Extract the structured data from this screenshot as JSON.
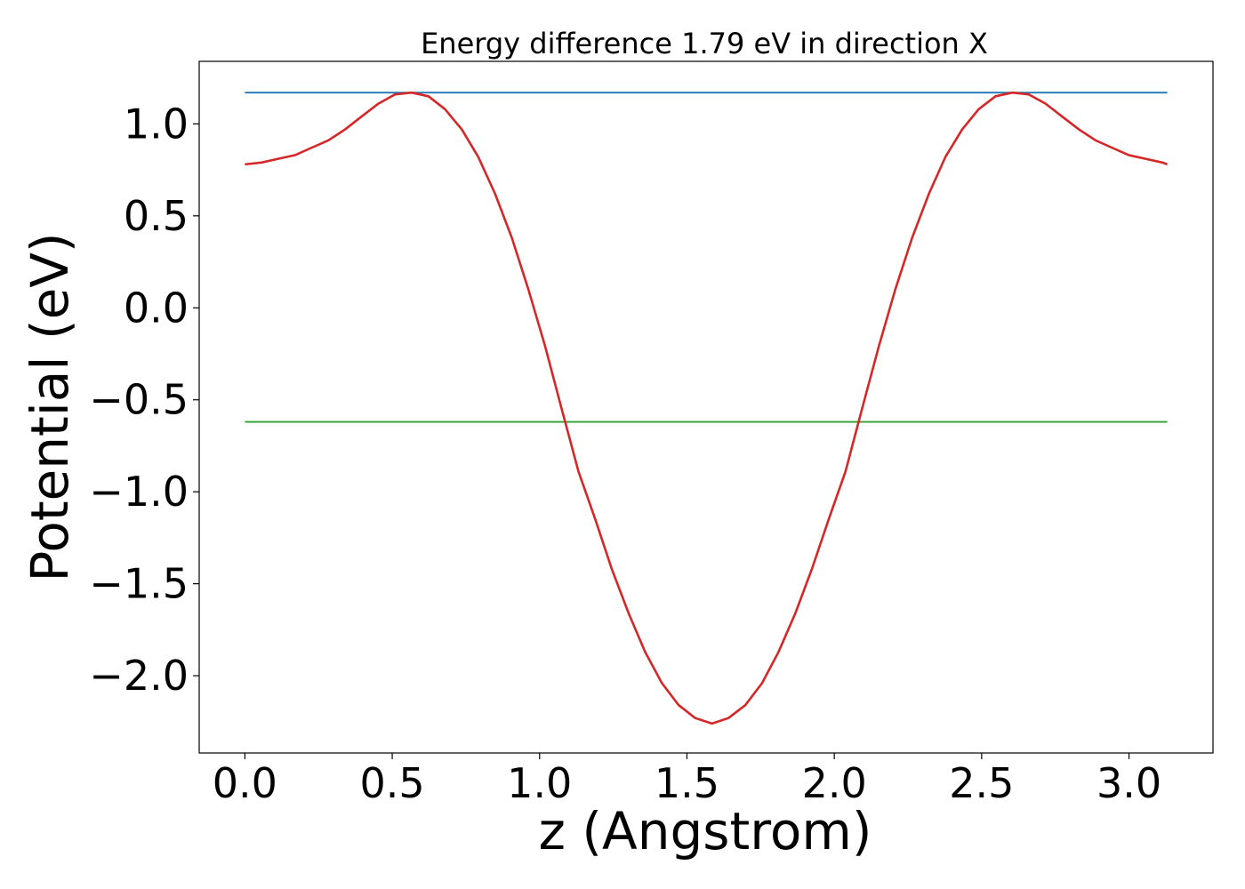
{
  "chart_data": {
    "type": "line",
    "title": "Energy difference 1.79 eV in direction X",
    "xlabel": "z (Angstrom)",
    "ylabel": "Potential (eV)",
    "xlim": [
      -0.155,
      3.285
    ],
    "ylim": [
      -2.42,
      1.34
    ],
    "grid": false,
    "xticks": [
      {
        "value": 0.0,
        "label": "0.0"
      },
      {
        "value": 0.5,
        "label": "0.5"
      },
      {
        "value": 1.0,
        "label": "1.0"
      },
      {
        "value": 1.5,
        "label": "1.5"
      },
      {
        "value": 2.0,
        "label": "2.0"
      },
      {
        "value": 2.5,
        "label": "2.5"
      },
      {
        "value": 3.0,
        "label": "3.0"
      }
    ],
    "yticks": [
      {
        "value": 1.0,
        "label": "1.0"
      },
      {
        "value": 0.5,
        "label": "0.5"
      },
      {
        "value": 0.0,
        "label": "0.0"
      },
      {
        "value": -0.5,
        "label": "−0.5"
      },
      {
        "value": -1.0,
        "label": "−1.0"
      },
      {
        "value": -1.5,
        "label": "−1.5"
      },
      {
        "value": -2.0,
        "label": "−2.0"
      }
    ],
    "series": [
      {
        "color": "#1f77b4",
        "x": [
          0.0,
          3.13
        ],
        "y": [
          1.17,
          1.17
        ]
      },
      {
        "color": "#2ca02c",
        "x": [
          0.0,
          3.13
        ],
        "y": [
          -0.62,
          -0.62
        ]
      },
      {
        "color": "#d62728",
        "x": [
          0.0,
          0.057,
          0.113,
          0.17,
          0.226,
          0.283,
          0.34,
          0.396,
          0.453,
          0.509,
          0.566,
          0.623,
          0.679,
          0.736,
          0.792,
          0.849,
          0.906,
          0.962,
          1.019,
          1.075,
          1.132,
          1.189,
          1.245,
          1.302,
          1.358,
          1.415,
          1.472,
          1.528,
          1.585,
          1.641,
          1.698,
          1.755,
          1.811,
          1.868,
          1.924,
          1.981,
          2.038,
          2.094,
          2.151,
          2.207,
          2.264,
          2.321,
          2.377,
          2.434,
          2.49,
          2.547,
          2.604,
          2.66,
          2.717,
          2.773,
          2.83,
          2.887,
          2.943,
          3.0,
          3.056,
          3.113,
          3.13
        ],
        "y": [
          0.78,
          0.79,
          0.81,
          0.83,
          0.87,
          0.91,
          0.97,
          1.04,
          1.11,
          1.16,
          1.17,
          1.15,
          1.08,
          0.97,
          0.82,
          0.62,
          0.38,
          0.1,
          -0.21,
          -0.55,
          -0.89,
          -1.15,
          -1.42,
          -1.66,
          -1.87,
          -2.04,
          -2.16,
          -2.23,
          -2.26,
          -2.23,
          -2.16,
          -2.04,
          -1.87,
          -1.66,
          -1.42,
          -1.15,
          -0.89,
          -0.55,
          -0.21,
          0.1,
          0.38,
          0.62,
          0.82,
          0.97,
          1.08,
          1.15,
          1.17,
          1.16,
          1.11,
          1.04,
          0.97,
          0.91,
          0.87,
          0.83,
          0.81,
          0.79,
          0.78
        ]
      }
    ]
  }
}
